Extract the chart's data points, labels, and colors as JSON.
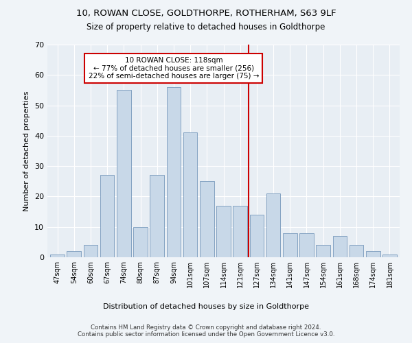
{
  "title": "10, ROWAN CLOSE, GOLDTHORPE, ROTHERHAM, S63 9LF",
  "subtitle": "Size of property relative to detached houses in Goldthorpe",
  "xlabel": "Distribution of detached houses by size in Goldthorpe",
  "ylabel": "Number of detached properties",
  "categories": [
    "47sqm",
    "54sqm",
    "60sqm",
    "67sqm",
    "74sqm",
    "80sqm",
    "87sqm",
    "94sqm",
    "101sqm",
    "107sqm",
    "114sqm",
    "121sqm",
    "127sqm",
    "134sqm",
    "141sqm",
    "147sqm",
    "154sqm",
    "161sqm",
    "168sqm",
    "174sqm",
    "181sqm"
  ],
  "values": [
    1,
    2,
    4,
    27,
    55,
    10,
    27,
    56,
    41,
    25,
    17,
    17,
    14,
    21,
    8,
    8,
    4,
    7,
    4,
    2,
    1
  ],
  "bar_color": "#c8d8e8",
  "bar_edge_color": "#7799bb",
  "vline_x": 11.5,
  "vline_color": "#cc0000",
  "annotation_text": "10 ROWAN CLOSE: 118sqm\n← 77% of detached houses are smaller (256)\n22% of semi-detached houses are larger (75) →",
  "annotation_box_color": "#ffffff",
  "annotation_box_edge_color": "#cc0000",
  "ylim": [
    0,
    70
  ],
  "yticks": [
    0,
    10,
    20,
    30,
    40,
    50,
    60,
    70
  ],
  "bg_color": "#e8eef4",
  "fig_bg_color": "#f0f4f8",
  "grid_color": "#ffffff",
  "footer": "Contains HM Land Registry data © Crown copyright and database right 2024.\nContains public sector information licensed under the Open Government Licence v3.0."
}
